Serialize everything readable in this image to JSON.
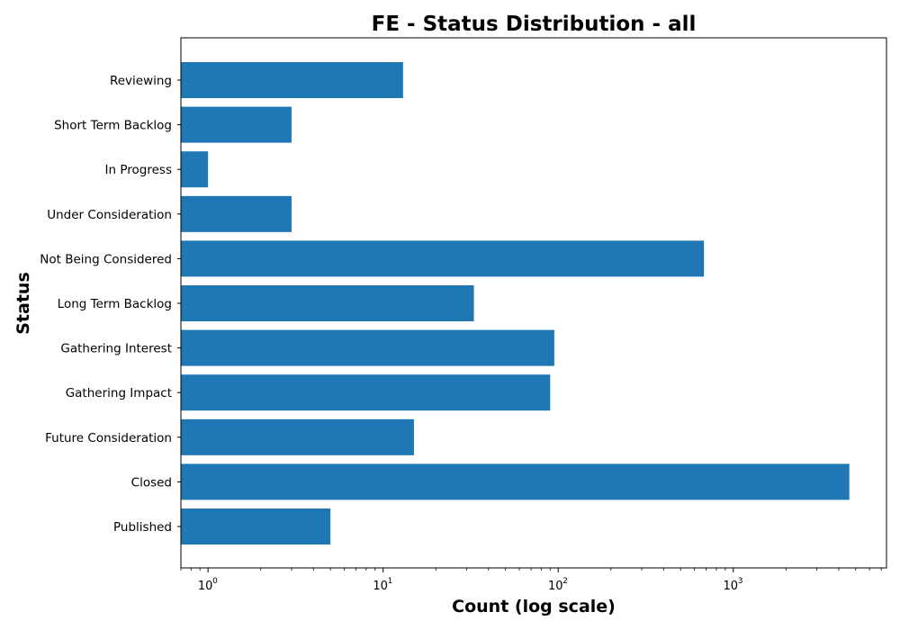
{
  "chart_data": {
    "type": "bar",
    "orientation": "horizontal",
    "title": "FE - Status Distribution - all",
    "xlabel": "Count (log scale)",
    "ylabel": "Status",
    "x_scale": "log",
    "xlim": [
      0.7,
      7500
    ],
    "categories": [
      "Published",
      "Closed",
      "Future Consideration",
      "Gathering Impact",
      "Gathering Interest",
      "Long Term Backlog",
      "Not Being Considered",
      "Under Consideration",
      "In Progress",
      "Short Term Backlog",
      "Reviewing"
    ],
    "values": [
      5,
      4600,
      15,
      90,
      95,
      33,
      680,
      3,
      1,
      3,
      13
    ],
    "x_ticks": [
      {
        "base": "10",
        "exp": "0",
        "value": 1
      },
      {
        "base": "10",
        "exp": "1",
        "value": 10
      },
      {
        "base": "10",
        "exp": "2",
        "value": 100
      },
      {
        "base": "10",
        "exp": "3",
        "value": 1000
      }
    ],
    "bar_color": "#1f77b4",
    "grid": false,
    "legend": "none"
  }
}
